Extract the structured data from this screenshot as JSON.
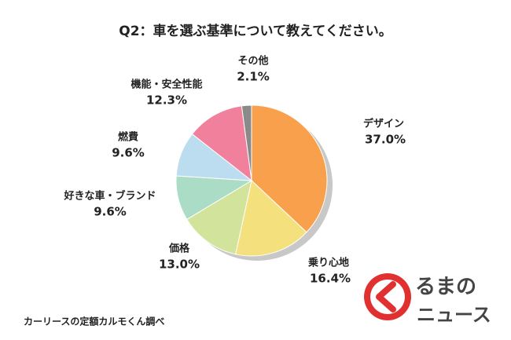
{
  "chart_data": {
    "type": "pie",
    "title": "Q2：車を選ぶ基準について教えてください。",
    "categories": [
      "デザイン",
      "乗り心地",
      "価格",
      "好きな車・ブランド",
      "燃費",
      "機能・安全性能",
      "その他"
    ],
    "values": [
      37.0,
      16.4,
      13.0,
      9.6,
      9.6,
      12.3,
      2.1
    ],
    "value_labels": [
      "37.0%",
      "16.4%",
      "13.0%",
      "9.6%",
      "9.6%",
      "12.3%",
      "2.1%"
    ],
    "colors": [
      "#f8a04c",
      "#f4e07c",
      "#d2e49c",
      "#aadcc6",
      "#bcdcf0",
      "#f0809c",
      "#8a8a8a"
    ],
    "source": "カーリースの定額カルモくん調べ"
  },
  "logo": {
    "line1": "るまの",
    "line2": "ニュース"
  }
}
